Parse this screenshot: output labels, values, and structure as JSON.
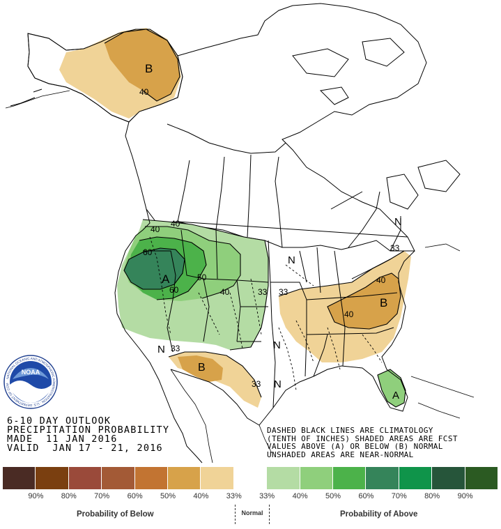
{
  "header": {
    "line1": "6-10 DAY OUTLOOK",
    "line2": "PRECIPITATION PROBABILITY",
    "made": "MADE  11 JAN 2016",
    "valid": "VALID  JAN 17 - 21, 2016"
  },
  "notes": {
    "line1": "DASHED BLACK LINES ARE CLIMATOLOGY",
    "line2": "(TENTH OF INCHES) SHADED AREAS ARE FCST",
    "line3": "VALUES ABOVE (A) OR BELOW (B) NORMAL",
    "line4": "UNSHADED AREAS ARE NEAR-NORMAL"
  },
  "logo": {
    "text": "NOAA",
    "ring_text": "NATIONAL OCEANIC AND ATMOSPHERIC ADMINISTRATION · U.S. DEPARTMENT OF COMMERCE"
  },
  "legend": {
    "below_caption": "Probability of Below",
    "normal_caption": "Normal",
    "above_caption": "Probability of Above",
    "ticks": [
      "90%",
      "80%",
      "70%",
      "60%",
      "50%",
      "40%",
      "33%",
      "33%",
      "40%",
      "50%",
      "60%",
      "70%",
      "80%",
      "90%"
    ],
    "colors": [
      "#4a2b24",
      "#7a3f10",
      "#9a4a3a",
      "#a35a36",
      "#c27432",
      "#d7a24a",
      "#f0d397",
      "#ffffff",
      "#b4dca4",
      "#8fcf7c",
      "#4cb24a",
      "#35845a",
      "#0f944a",
      "#26553a",
      "#2b5a22"
    ]
  },
  "map_labels": {
    "alaska_b": "B",
    "alaska_40": "40",
    "west_a": "A",
    "west_60a": "60",
    "west_60b": "60",
    "west_50": "50",
    "west_40a": "40",
    "west_40b": "40",
    "west_40c": "40",
    "plains_33a": "33",
    "plains_33b": "33",
    "sw_n": "N",
    "sw_33": "33",
    "sw_b": "B",
    "tx_33": "33",
    "tx_n1": "N",
    "tx_n2": "N",
    "ne_n": "N",
    "ne_33": "33",
    "midwest_n": "N",
    "east_40a": "40",
    "east_40b": "40",
    "east_b": "B",
    "fl_a": "A"
  }
}
